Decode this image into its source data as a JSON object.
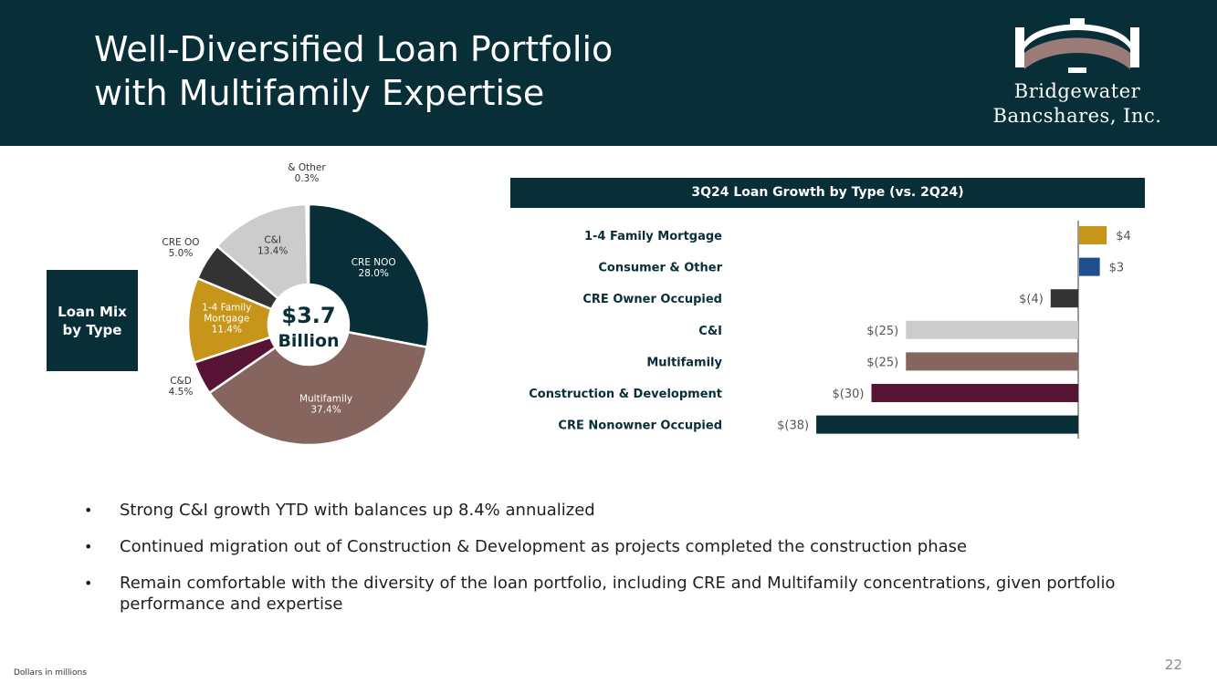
{
  "header": {
    "title_line1": "Well-Diversified Loan Portfolio",
    "title_line2": "with Multifamily Expertise"
  },
  "logo": {
    "line1": "Bridgewater",
    "line2": "Bancshares, Inc."
  },
  "mix_label": "Loan Mix by Type",
  "chart_data": [
    {
      "type": "pie",
      "title": "",
      "center_label": {
        "value": "$3.7",
        "unit": "Billion"
      },
      "slices": [
        {
          "name": "CRE NOO",
          "value": 28.0,
          "label": "28.0%",
          "color": "#082f38",
          "label_color": "#ffffff"
        },
        {
          "name": "Multifamily",
          "value": 37.4,
          "label": "37.4%",
          "color": "#86655f",
          "label_color": "#ffffff"
        },
        {
          "name": "C&D",
          "value": 4.5,
          "label": "4.5%",
          "color": "#561334",
          "label_color": "#333333"
        },
        {
          "name": "1-4 Family Mortgage",
          "value": 11.4,
          "label": "11.4%",
          "color": "#c8951b",
          "label_color": "#ffffff"
        },
        {
          "name": "CRE OO",
          "value": 5.0,
          "label": "5.0%",
          "color": "#333333",
          "label_color": "#333333"
        },
        {
          "name": "C&I",
          "value": 13.4,
          "label": "13.4%",
          "color": "#cccccc",
          "label_color": "#333333"
        },
        {
          "name": "Consumer & Other",
          "value": 0.3,
          "label": "0.3%",
          "color": "#1f4e8c",
          "label_color": "#333333"
        }
      ]
    },
    {
      "type": "bar",
      "orientation": "horizontal",
      "title": "3Q24 Loan Growth by Type (vs. 2Q24)",
      "categories": [
        "1-4 Family Mortgage",
        "Consumer & Other",
        "CRE Owner Occupied",
        "C&I",
        "Multifamily",
        "Construction & Development",
        "CRE Nonowner Occupied"
      ],
      "values": [
        4,
        3,
        -4,
        -25,
        -25,
        -30,
        -38
      ],
      "value_labels": [
        "$4",
        "$3",
        "$(4)",
        "$(25)",
        "$(25)",
        "$(30)",
        "$(38)"
      ],
      "colors": [
        "#c8951b",
        "#1f4e8c",
        "#333333",
        "#cccccc",
        "#86655f",
        "#561334",
        "#082f38"
      ],
      "xlim": [
        -38,
        4
      ]
    }
  ],
  "bullets": [
    "Strong C&I growth YTD with balances up 8.4% annualized",
    "Continued migration out of Construction & Development as projects completed the construction phase",
    "Remain comfortable with the diversity of the loan portfolio, including CRE and Multifamily concentrations, given portfolio performance and expertise"
  ],
  "footnote": "Dollars in millions",
  "page_number": "22"
}
